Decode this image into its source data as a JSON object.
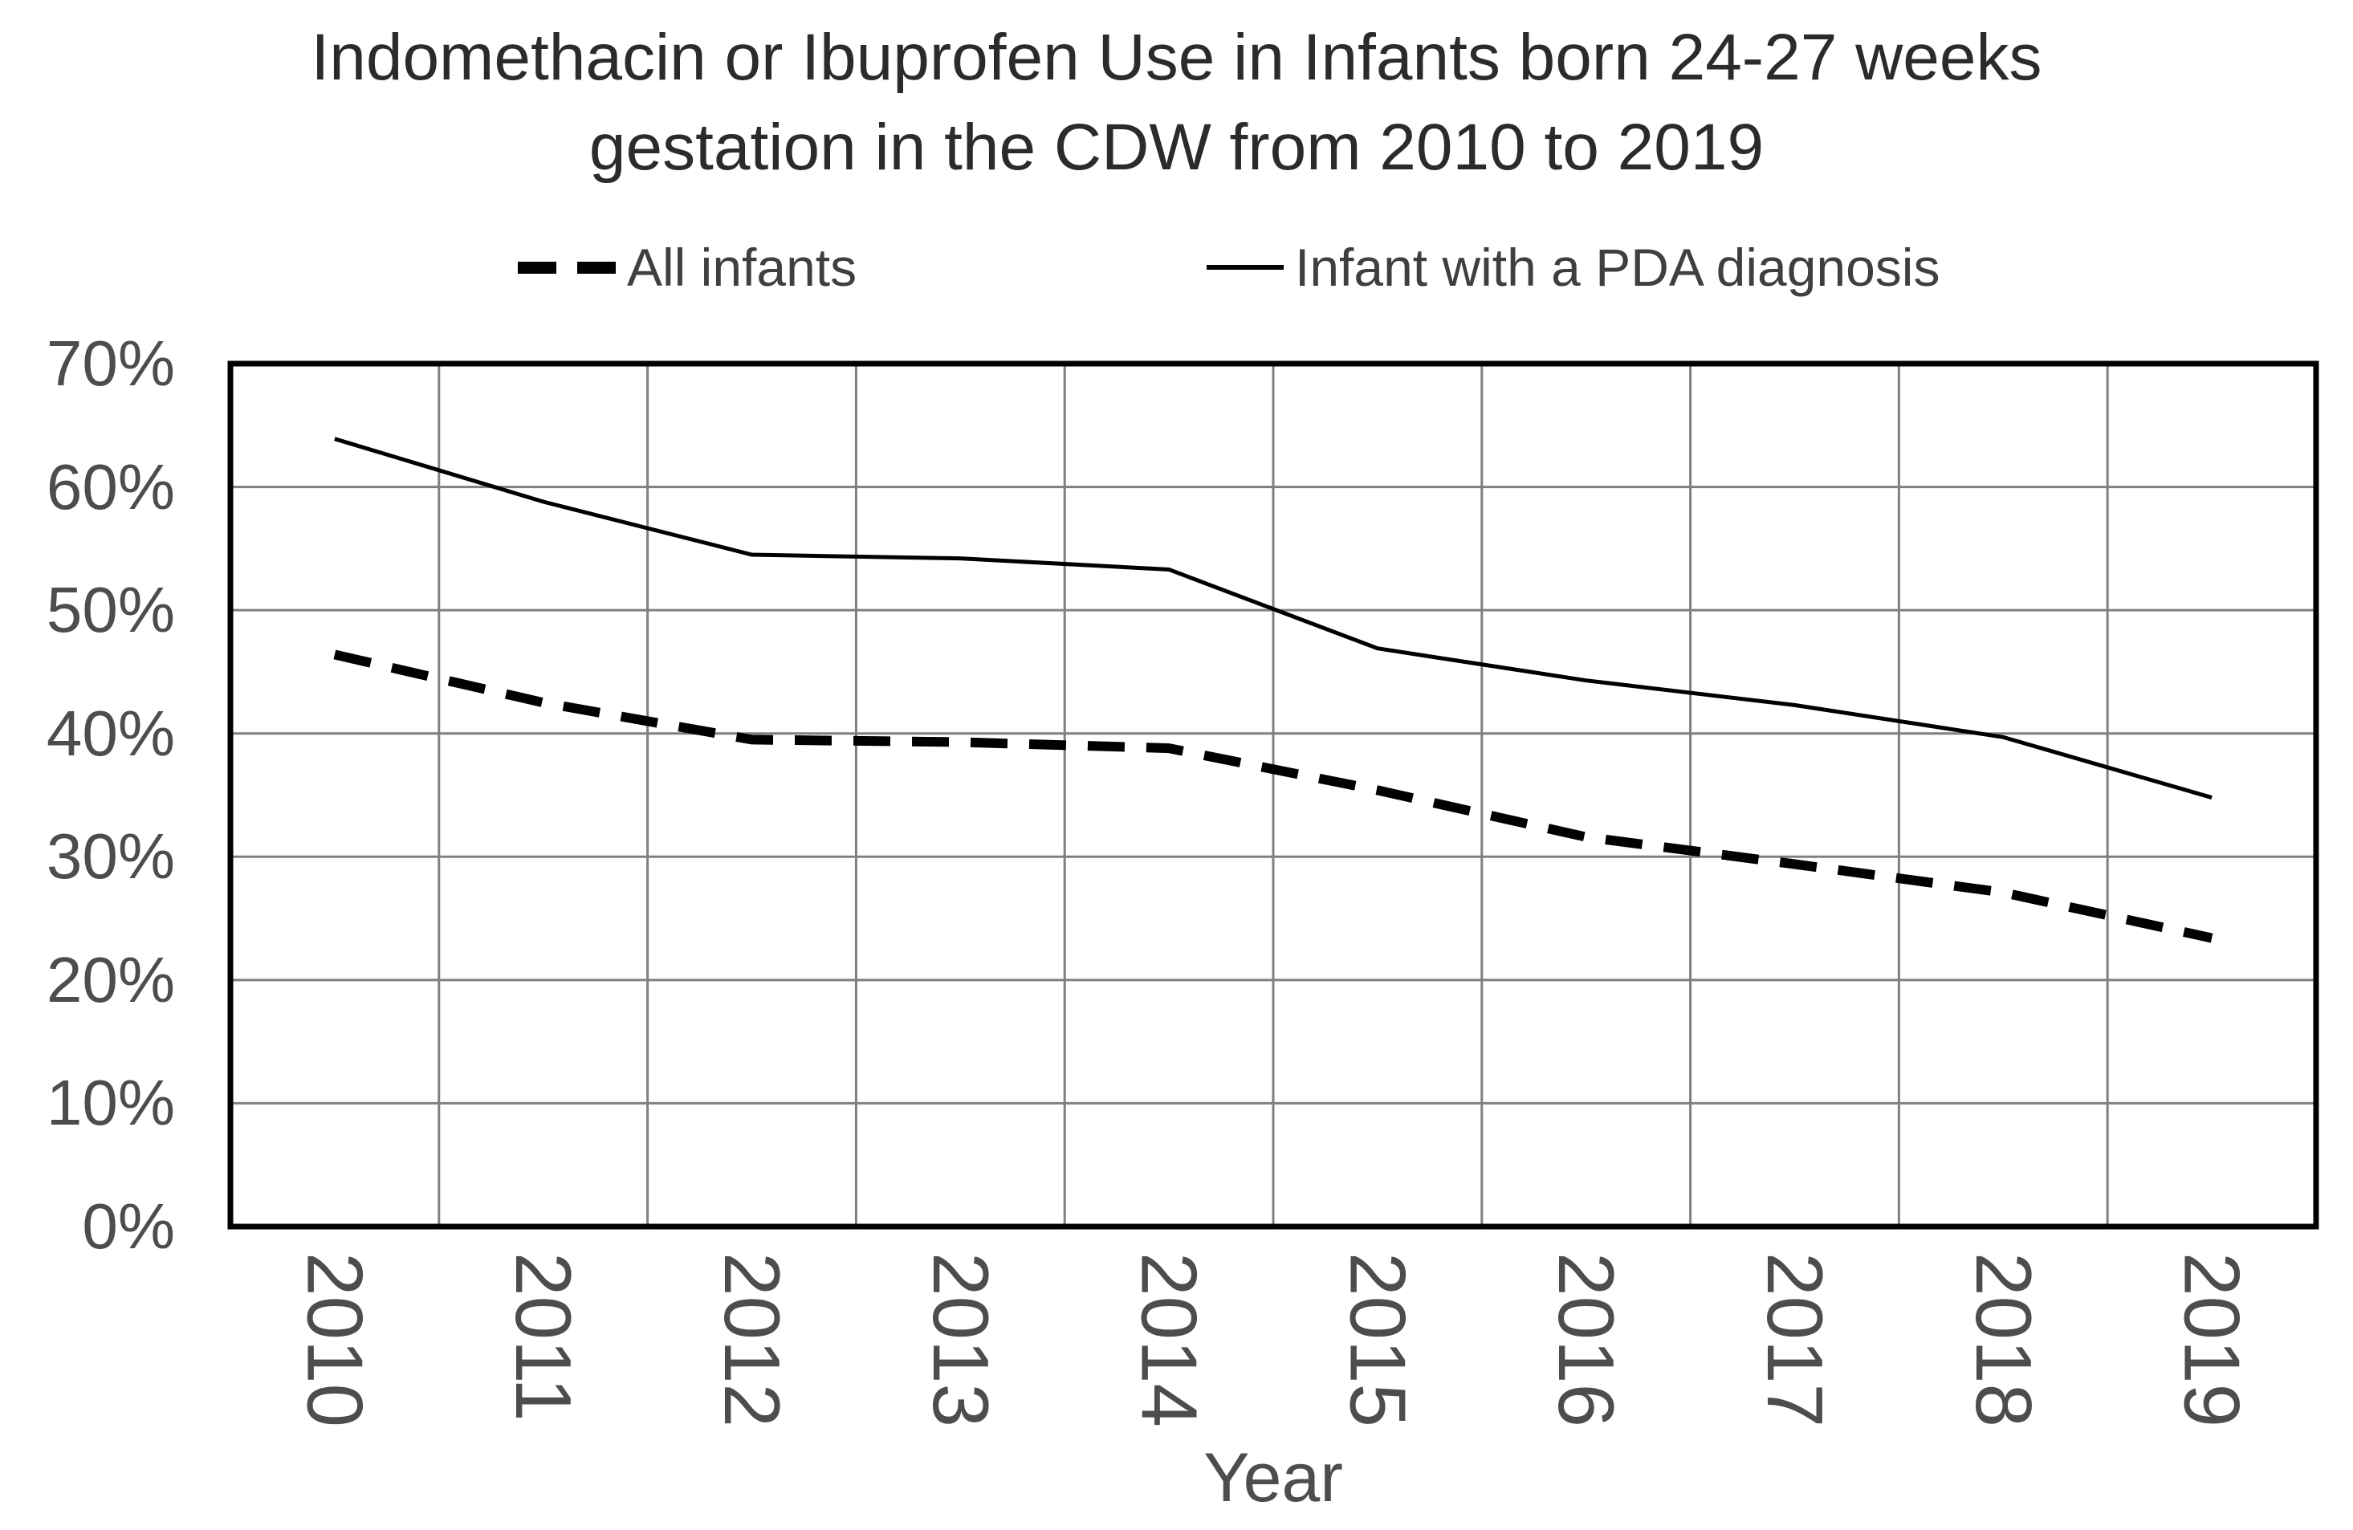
{
  "title": {
    "line1": "Indomethacin or Ibuprofen Use in Infants born 24-27 weeks",
    "line2": "gestation in the CDW from 2010 to 2019"
  },
  "legend": {
    "all_infants_label": "All infants",
    "pda_label": "Infant with a PDA diagnosis"
  },
  "axes": {
    "x_title": "Year",
    "y_tick_labels": [
      "0%",
      "10%",
      "20%",
      "30%",
      "40%",
      "50%",
      "60%",
      "70%"
    ],
    "x_tick_labels": [
      "2010",
      "2011",
      "2012",
      "2013",
      "2014",
      "2015",
      "2016",
      "2017",
      "2018",
      "2019"
    ]
  },
  "colors": {
    "series_line": "#000000",
    "gridline": "#808080",
    "plot_border": "#000000",
    "axis_text": "#4d4d4d",
    "title_text": "#2b2b2b"
  },
  "chart_data": {
    "type": "line",
    "title": "Indomethacin or Ibuprofen Use in Infants born 24-27 weeks gestation in the CDW from 2010 to 2019",
    "categories": [
      2010,
      2011,
      2012,
      2013,
      2014,
      2015,
      2016,
      2017,
      2018,
      2019
    ],
    "series": [
      {
        "name": "All infants",
        "line_style": "dashed",
        "values": [
          46.4,
          42.5,
          39.5,
          39.3,
          38.8,
          35.4,
          31.6,
          29.4,
          27.1,
          23.4
        ]
      },
      {
        "name": "Infant with a PDA diagnosis",
        "line_style": "solid",
        "values": [
          63.9,
          58.8,
          54.5,
          54.2,
          53.3,
          46.9,
          44.3,
          42.3,
          39.7,
          34.8
        ]
      }
    ],
    "xlabel": "Year",
    "ylabel": "",
    "ylim": [
      0,
      70
    ],
    "y_tick_step": 10,
    "y_tick_format": "percent",
    "grid": true,
    "legend_position": "top"
  }
}
